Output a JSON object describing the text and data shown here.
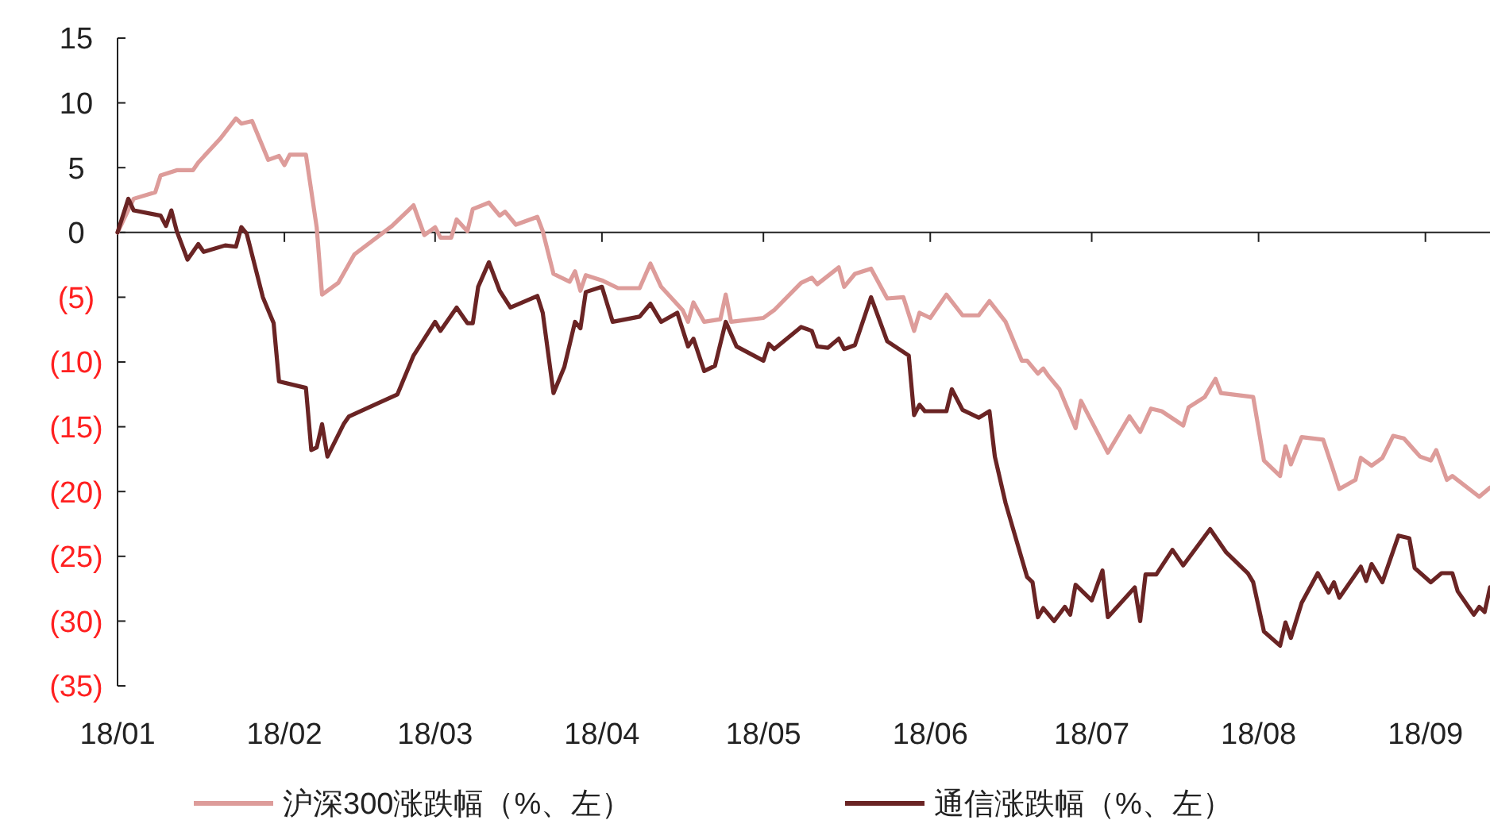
{
  "chart_data": {
    "type": "line",
    "xlim": [
      "--01-01",
      "--09-13"
    ],
    "xticks": [
      {
        "value": "--01-01",
        "label": "18/01"
      },
      {
        "value": "--02-01",
        "label": "18/02"
      },
      {
        "value": "--03-01",
        "label": "18/03"
      },
      {
        "value": "--04-01",
        "label": "18/04"
      },
      {
        "value": "--05-01",
        "label": "18/05"
      },
      {
        "value": "--06-01",
        "label": "18/06"
      },
      {
        "value": "--07-01",
        "label": "18/07"
      },
      {
        "value": "--08-01",
        "label": "18/08"
      },
      {
        "value": "--09-01",
        "label": "18/09"
      }
    ],
    "ylim": [
      -35,
      15
    ],
    "yticks": [
      15,
      10,
      5,
      0,
      {
        "value": -5,
        "label": "(5)"
      },
      {
        "value": -10,
        "label": "(10)"
      },
      {
        "value": -15,
        "label": "(15)"
      },
      {
        "value": -20,
        "label": "(20)"
      },
      {
        "value": -25,
        "label": "(25)"
      },
      {
        "value": -30,
        "label": "(30)"
      },
      {
        "value": -35,
        "label": "(35)"
      }
    ],
    "ref_lines": [
      {
        "axis": "y",
        "value": 0,
        "color": "#222222",
        "line_style": "solid"
      }
    ],
    "grid": false,
    "legend": "bottom",
    "line_style": "solid",
    "marker": "none",
    "series": [
      {
        "name": "沪深300涨跌幅（%、左）",
        "color": "#dd9c9a",
        "x": [
          "--01-01",
          "--01-04",
          "--01-08",
          "--01-09",
          "--01-12",
          "--01-15",
          "--01-16",
          "--01-20",
          "--01-23",
          "--01-24",
          "--01-26",
          "--01-29",
          "--01-31",
          "--02-01",
          "--02-02",
          "--02-05",
          "--02-07",
          "--02-08",
          "--02-11",
          "--02-14",
          "--02-21",
          "--02-25",
          "--02-27",
          "--03-01",
          "--03-02",
          "--03-04",
          "--03-05",
          "--03-07",
          "--03-08",
          "--03-11",
          "--03-13",
          "--03-14",
          "--03-16",
          "--03-20",
          "--03-21",
          "--03-23",
          "--03-26",
          "--03-27",
          "--03-28",
          "--03-29",
          "--04-01",
          "--04-04",
          "--04-08",
          "--04-10",
          "--04-12",
          "--04-16",
          "--04-17",
          "--04-18",
          "--04-20",
          "--04-23",
          "--04-24",
          "--04-25",
          "--05-01",
          "--05-03",
          "--05-08",
          "--05-10",
          "--05-11",
          "--05-15",
          "--05-16",
          "--05-18",
          "--05-21",
          "--05-24",
          "--05-27",
          "--05-29",
          "--05-30",
          "--06-01",
          "--06-04",
          "--06-07",
          "--06-10",
          "--06-12",
          "--06-15",
          "--06-18",
          "--06-19",
          "--06-21",
          "--06-22",
          "--06-23",
          "--06-25",
          "--06-26",
          "--06-28",
          "--06-29",
          "--07-02",
          "--07-04",
          "--07-08",
          "--07-10",
          "--07-12",
          "--07-14",
          "--07-18",
          "--07-19",
          "--07-22",
          "--07-24",
          "--07-25",
          "--07-31",
          "--08-02",
          "--08-05",
          "--08-06",
          "--08-07",
          "--08-09",
          "--08-13",
          "--08-15",
          "--08-16",
          "--08-19",
          "--08-20",
          "--08-22",
          "--08-24",
          "--08-26",
          "--08-28",
          "--08-31",
          "--09-02",
          "--09-03",
          "--09-05",
          "--09-06",
          "--09-11",
          "--09-13"
        ],
        "values": [
          0,
          2.6,
          3.1,
          4.4,
          4.8,
          4.8,
          5.4,
          7.2,
          8.8,
          8.4,
          8.6,
          5.6,
          5.9,
          5.2,
          6.0,
          6.0,
          0.4,
          -4.8,
          -3.9,
          -1.7,
          0.5,
          2.1,
          -0.2,
          0.4,
          -0.4,
          -0.4,
          1.0,
          0.1,
          1.8,
          2.3,
          1.3,
          1.6,
          0.6,
          1.2,
          0.1,
          -3.2,
          -3.8,
          -3.0,
          -4.5,
          -3.3,
          -3.7,
          -4.3,
          -4.3,
          -2.4,
          -4.2,
          -6.0,
          -6.9,
          -5.4,
          -6.9,
          -6.7,
          -4.8,
          -6.9,
          -6.6,
          -6.0,
          -3.9,
          -3.5,
          -4.0,
          -2.7,
          -4.2,
          -3.2,
          -2.8,
          -5.1,
          -5.0,
          -7.6,
          -6.2,
          -6.6,
          -4.8,
          -6.4,
          -6.4,
          -5.3,
          -6.9,
          -9.9,
          -9.9,
          -10.9,
          -10.5,
          -11.1,
          -12.1,
          -13.1,
          -15.1,
          -13.0,
          -15.4,
          -17.0,
          -14.2,
          -15.4,
          -13.6,
          -13.8,
          -14.9,
          -13.5,
          -12.7,
          -11.3,
          -12.4,
          -12.7,
          -17.6,
          -18.8,
          -16.5,
          -17.9,
          -15.8,
          -16.0,
          -18.5,
          -19.8,
          -19.1,
          -17.4,
          -18.0,
          -17.4,
          -15.7,
          -15.9,
          -17.3,
          -17.6,
          -16.8,
          -19.1,
          -18.8,
          -20.4,
          -19.7
        ]
      },
      {
        "name": "通信涨跌幅（%、左）",
        "color": "#6a2424",
        "x": [
          "--01-01",
          "--01-03",
          "--01-04",
          "--01-09",
          "--01-10",
          "--01-11",
          "--01-12",
          "--01-14",
          "--01-16",
          "--01-17",
          "--01-21",
          "--01-23",
          "--01-24",
          "--01-25",
          "--01-28",
          "--01-30",
          "--01-31",
          "--02-05",
          "--02-06",
          "--02-07",
          "--02-08",
          "--02-09",
          "--02-12",
          "--02-13",
          "--02-22",
          "--02-25",
          "--02-27",
          "--03-01",
          "--03-02",
          "--03-05",
          "--03-07",
          "--03-08",
          "--03-09",
          "--03-11",
          "--03-13",
          "--03-15",
          "--03-20",
          "--03-21",
          "--03-23",
          "--03-25",
          "--03-27",
          "--03-28",
          "--03-29",
          "--04-01",
          "--04-03",
          "--04-08",
          "--04-10",
          "--04-12",
          "--04-15",
          "--04-17",
          "--04-18",
          "--04-20",
          "--04-22",
          "--04-24",
          "--04-26",
          "--05-01",
          "--05-02",
          "--05-03",
          "--05-08",
          "--05-10",
          "--05-11",
          "--05-13",
          "--05-15",
          "--05-16",
          "--05-18",
          "--05-21",
          "--05-24",
          "--05-28",
          "--05-29",
          "--05-30",
          "--05-31",
          "--06-04",
          "--06-05",
          "--06-07",
          "--06-10",
          "--06-12",
          "--06-13",
          "--06-15",
          "--06-19",
          "--06-20",
          "--06-21",
          "--06-22",
          "--06-24",
          "--06-26",
          "--06-27",
          "--06-28",
          "--07-01",
          "--07-03",
          "--07-04",
          "--07-09",
          "--07-10",
          "--07-11",
          "--07-13",
          "--07-16",
          "--07-18",
          "--07-23",
          "--07-26",
          "--07-30",
          "--07-31",
          "--08-02",
          "--08-05",
          "--08-06",
          "--08-07",
          "--08-09",
          "--08-12",
          "--08-14",
          "--08-15",
          "--08-16",
          "--08-20",
          "--08-21",
          "--08-22",
          "--08-24",
          "--08-27",
          "--08-29",
          "--08-30",
          "--09-02",
          "--09-04",
          "--09-06",
          "--09-07",
          "--09-10",
          "--09-11",
          "--09-12",
          "--09-13"
        ],
        "values": [
          0,
          2.6,
          1.7,
          1.3,
          0.5,
          1.7,
          0.1,
          -2.1,
          -0.9,
          -1.5,
          -1.0,
          -1.1,
          0.4,
          -0.1,
          -5.0,
          -7.0,
          -11.5,
          -12.0,
          -16.8,
          -16.6,
          -14.8,
          -17.3,
          -14.8,
          -14.2,
          -12.5,
          -9.5,
          -8.2,
          -6.9,
          -7.6,
          -5.8,
          -7.0,
          -7.0,
          -4.2,
          -2.3,
          -4.5,
          -5.8,
          -4.9,
          -6.2,
          -12.4,
          -10.4,
          -6.9,
          -7.4,
          -4.6,
          -4.2,
          -6.9,
          -6.5,
          -5.5,
          -6.9,
          -6.2,
          -8.8,
          -8.2,
          -10.7,
          -10.3,
          -6.9,
          -8.8,
          -9.9,
          -8.6,
          -9.0,
          -7.3,
          -7.6,
          -8.8,
          -8.9,
          -8.2,
          -9.0,
          -8.7,
          -5.0,
          -8.4,
          -9.5,
          -14.1,
          -13.3,
          -13.8,
          -13.8,
          -12.1,
          -13.7,
          -14.3,
          -13.8,
          -17.3,
          -20.9,
          -26.6,
          -27.0,
          -29.7,
          -29.0,
          -30.0,
          -28.9,
          -29.5,
          -27.2,
          -28.4,
          -26.1,
          -29.7,
          -27.4,
          -30.0,
          -26.4,
          -26.4,
          -24.5,
          -25.7,
          -22.9,
          -24.7,
          -26.3,
          -27.0,
          -30.8,
          -31.9,
          -30.1,
          -31.3,
          -28.6,
          -26.3,
          -27.8,
          -27.0,
          -28.2,
          -25.8,
          -26.9,
          -25.6,
          -27.0,
          -23.4,
          -23.6,
          -25.9,
          -27.0,
          -26.3,
          -26.3,
          -27.7,
          -29.5,
          -28.9,
          -29.3,
          -27.4
        ]
      }
    ]
  }
}
